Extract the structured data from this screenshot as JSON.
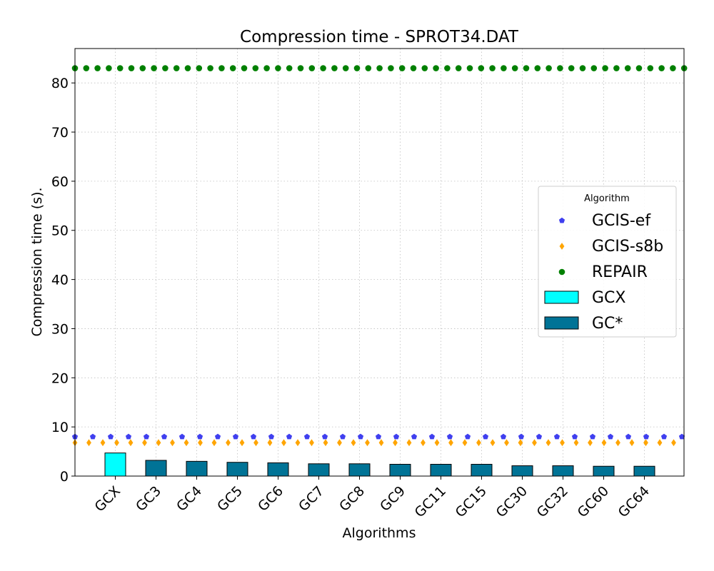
{
  "chart_data": {
    "type": "bar",
    "title": "Compression time -  SPROT34.DAT",
    "xlabel": "Algorithms",
    "ylabel": "Compression time (s).",
    "ylim": [
      0,
      87
    ],
    "yticks": [
      0,
      10,
      20,
      30,
      40,
      50,
      60,
      70,
      80
    ],
    "grid": true,
    "legend": {
      "title": "Algorithm",
      "placement": "center-right"
    },
    "categories": [
      "GCX",
      "GC3",
      "GC4",
      "GC5",
      "GC6",
      "GC7",
      "GC8",
      "GC9",
      "GC11",
      "GC15",
      "GC30",
      "GC32",
      "GC60",
      "GC64"
    ],
    "bars": [
      {
        "name": "GCX",
        "color": "#00ffff",
        "categories": [
          "GCX"
        ],
        "values": [
          4.7
        ]
      },
      {
        "name": "GC*",
        "color": "#007396",
        "categories": [
          "GC3",
          "GC4",
          "GC5",
          "GC6",
          "GC7",
          "GC8",
          "GC9",
          "GC11",
          "GC15",
          "GC30",
          "GC32",
          "GC60",
          "GC64"
        ],
        "values": [
          3.2,
          3.0,
          2.8,
          2.7,
          2.5,
          2.5,
          2.4,
          2.4,
          2.4,
          2.1,
          2.1,
          2.0,
          2.0
        ]
      }
    ],
    "reference_lines": [
      {
        "name": "GCIS-ef",
        "value": 8.0,
        "color": "#3f3fef",
        "marker": "pentagon"
      },
      {
        "name": "GCIS-s8b",
        "value": 6.8,
        "color": "#ffa500",
        "marker": "diamond"
      },
      {
        "name": "REPAIR",
        "value": 83.0,
        "color": "#008000",
        "marker": "circle"
      }
    ]
  }
}
